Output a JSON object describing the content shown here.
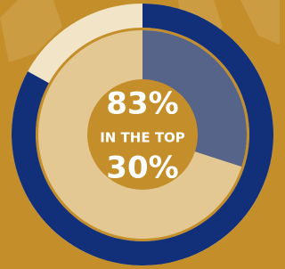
{
  "chart_data": {
    "type": "donut",
    "caption": "IN THE TOP",
    "rings": [
      {
        "values": [
          83
        ],
        "value_labels": [
          "83%"
        ],
        "color": "#12307a",
        "rest_color": "#f2e4c6"
      },
      {
        "values": [
          30
        ],
        "value_labels": [
          "30%"
        ],
        "color": "#56648a",
        "rest_color": "#e3c893"
      }
    ]
  }
}
